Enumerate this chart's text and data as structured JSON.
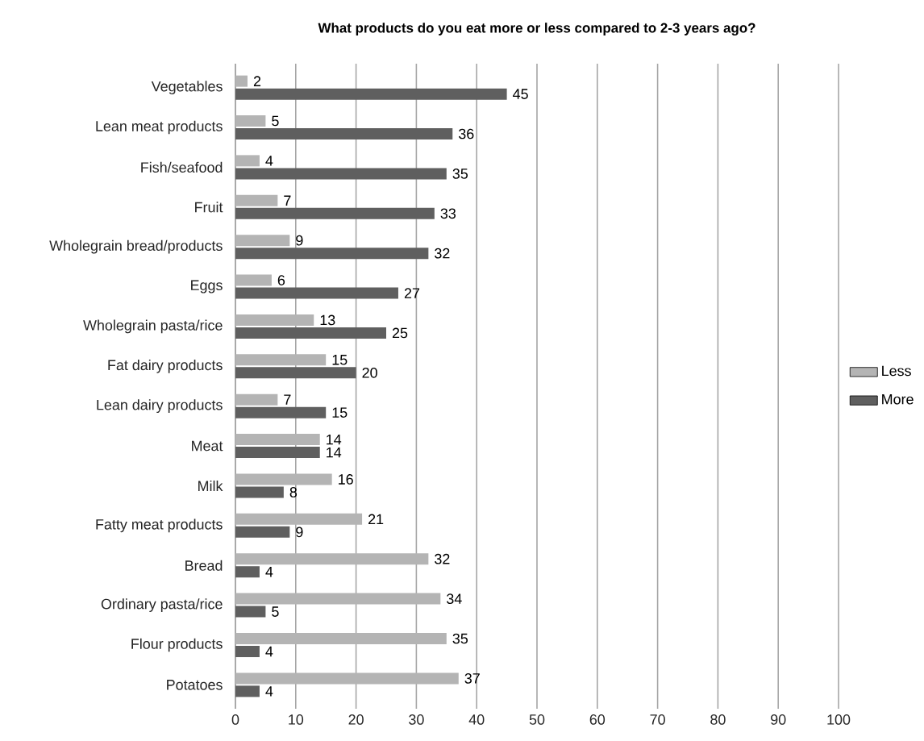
{
  "chart_data": {
    "type": "bar",
    "orientation": "horizontal",
    "title": "What products do you eat more or less compared to 2-3 years ago?",
    "categories": [
      "Vegetables",
      "Lean meat products",
      "Fish/seafood",
      "Fruit",
      "Wholegrain bread/products",
      "Eggs",
      "Wholegrain pasta/rice",
      "Fat dairy products",
      "Lean dairy products",
      "Meat",
      "Milk",
      "Fatty meat products",
      "Bread",
      "Ordinary pasta/rice",
      "Flour products",
      "Potatoes"
    ],
    "series": [
      {
        "name": "Less",
        "color": "#b4b4b4",
        "values": [
          2,
          5,
          4,
          7,
          9,
          6,
          13,
          15,
          7,
          14,
          16,
          21,
          32,
          34,
          35,
          37
        ]
      },
      {
        "name": "More",
        "color": "#5f5f5f",
        "values": [
          45,
          36,
          35,
          33,
          32,
          27,
          25,
          20,
          15,
          14,
          8,
          9,
          4,
          5,
          4,
          4
        ]
      }
    ],
    "xlim": [
      0,
      100
    ],
    "xticks": [
      0,
      10,
      20,
      30,
      40,
      50,
      60,
      70,
      80,
      90,
      100
    ],
    "grid": "x",
    "legend": "right",
    "data_labels": true
  }
}
